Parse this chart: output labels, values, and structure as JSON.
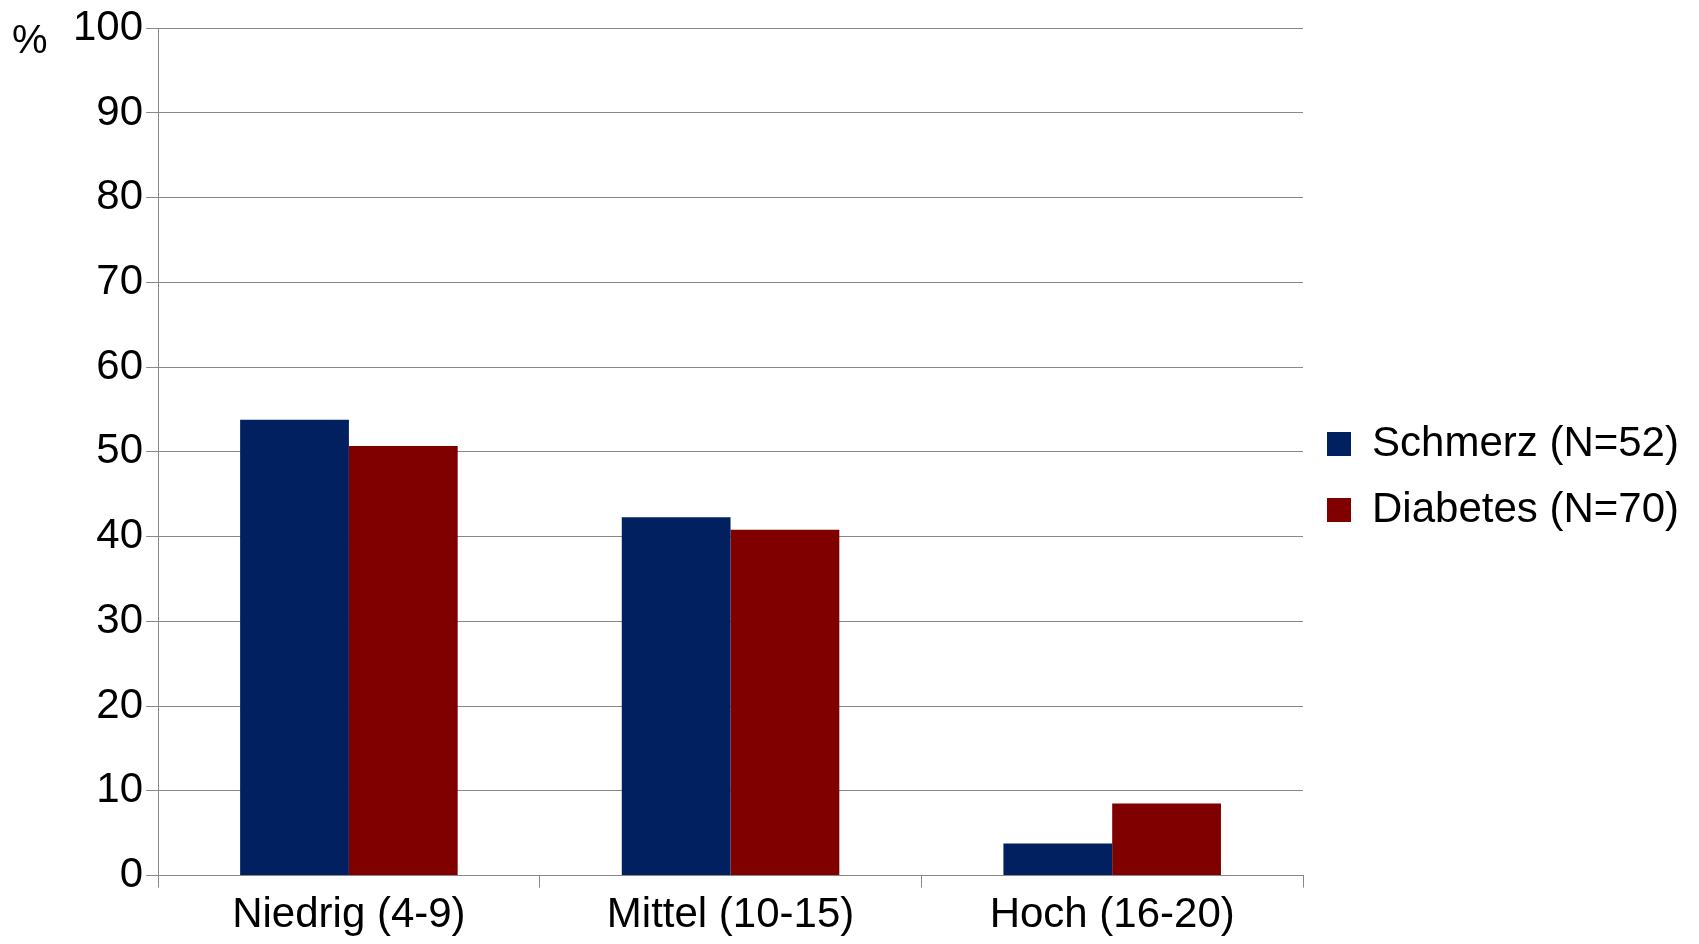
{
  "chart_data": {
    "type": "bar",
    "ylabel": "%",
    "categories": [
      "Niedrig (4-9)",
      "Mittel (10-15)",
      "Hoch (16-20)"
    ],
    "series": [
      {
        "name": "Schmerz (N=52)",
        "color": "#002060",
        "values": [
          53.8,
          42.3,
          3.8
        ]
      },
      {
        "name": "Diabetes (N=70)",
        "color": "#800000",
        "values": [
          50.7,
          40.8,
          8.5
        ]
      }
    ],
    "ylim": [
      0,
      100
    ],
    "yticks": [
      0,
      10,
      20,
      30,
      40,
      50,
      60,
      70,
      80,
      90,
      100
    ],
    "grid": "y",
    "legend": "right"
  }
}
